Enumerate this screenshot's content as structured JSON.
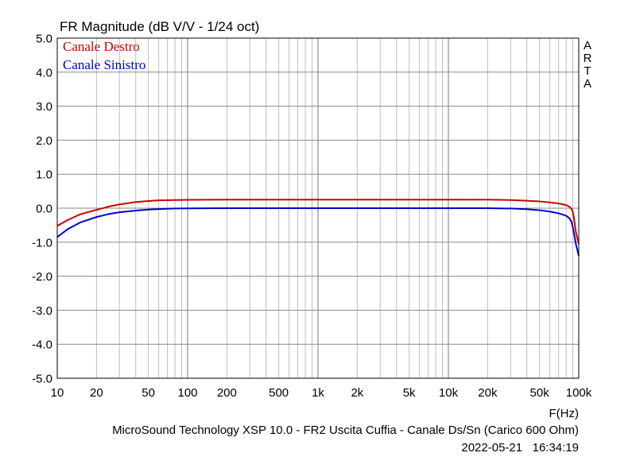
{
  "chart_data": {
    "type": "line",
    "title": "FR Magnitude (dB V/V - 1/24 oct)",
    "xlabel": "F(Hz)",
    "ylabel": "",
    "x_scale": "log",
    "xlim": [
      10,
      100000
    ],
    "ylim": [
      -5.0,
      5.0
    ],
    "grid": true,
    "legend_position": "top-left",
    "x_tick_labels": [
      {
        "value": 10,
        "label": "10"
      },
      {
        "value": 20,
        "label": "20"
      },
      {
        "value": 50,
        "label": "50"
      },
      {
        "value": 100,
        "label": "100"
      },
      {
        "value": 200,
        "label": "200"
      },
      {
        "value": 500,
        "label": "500"
      },
      {
        "value": 1000,
        "label": "1k"
      },
      {
        "value": 2000,
        "label": "2k"
      },
      {
        "value": 5000,
        "label": "5k"
      },
      {
        "value": 10000,
        "label": "10k"
      },
      {
        "value": 20000,
        "label": "20k"
      },
      {
        "value": 50000,
        "label": "50k"
      },
      {
        "value": 100000,
        "label": "100k"
      }
    ],
    "y_tick_labels": [
      {
        "value": 5,
        "label": "5.0"
      },
      {
        "value": 4,
        "label": "4.0"
      },
      {
        "value": 3,
        "label": "3.0"
      },
      {
        "value": 2,
        "label": "2.0"
      },
      {
        "value": 1,
        "label": "1.0"
      },
      {
        "value": 0,
        "label": "0.0"
      },
      {
        "value": -1,
        "label": "-1.0"
      },
      {
        "value": -2,
        "label": "-2.0"
      },
      {
        "value": -3,
        "label": "-3.0"
      },
      {
        "value": -4,
        "label": "-4.0"
      },
      {
        "value": -5,
        "label": "-5.0"
      }
    ],
    "side_label": [
      "A",
      "R",
      "T",
      "A"
    ],
    "series": [
      {
        "name": "Canale Destro",
        "color": "#cc0000",
        "x": [
          10,
          12,
          15,
          20,
          25,
          30,
          40,
          50,
          60,
          80,
          100,
          200,
          500,
          1000,
          5000,
          10000,
          20000,
          30000,
          40000,
          50000,
          60000,
          70000,
          80000,
          85000,
          88000,
          90000,
          92000,
          95000,
          100000
        ],
        "y": [
          -0.52,
          -0.35,
          -0.18,
          -0.05,
          0.05,
          0.11,
          0.18,
          0.21,
          0.23,
          0.24,
          0.245,
          0.25,
          0.25,
          0.25,
          0.25,
          0.25,
          0.25,
          0.24,
          0.22,
          0.2,
          0.17,
          0.14,
          0.09,
          0.04,
          -0.02,
          -0.1,
          -0.3,
          -0.7,
          -1.05
        ]
      },
      {
        "name": "Canale Sinistro",
        "color": "#0000cc",
        "x": [
          10,
          12,
          15,
          20,
          25,
          30,
          40,
          50,
          60,
          80,
          100,
          200,
          500,
          1000,
          5000,
          10000,
          20000,
          30000,
          40000,
          50000,
          60000,
          70000,
          80000,
          85000,
          88000,
          90000,
          92000,
          95000,
          100000
        ],
        "y": [
          -0.85,
          -0.62,
          -0.42,
          -0.26,
          -0.17,
          -0.12,
          -0.07,
          -0.04,
          -0.025,
          -0.01,
          -0.005,
          0.0,
          0.0,
          0.0,
          0.0,
          0.0,
          0.0,
          -0.01,
          -0.03,
          -0.06,
          -0.1,
          -0.15,
          -0.22,
          -0.3,
          -0.4,
          -0.55,
          -0.75,
          -1.05,
          -1.4
        ]
      }
    ]
  },
  "footer": {
    "caption": "MicroSound Technology XSP 10.0 - FR2 Uscita Cuffia - Canale Ds/Sn (Carico 600 Ohm)",
    "timestamp": "2022-05-21   16:34:19"
  }
}
